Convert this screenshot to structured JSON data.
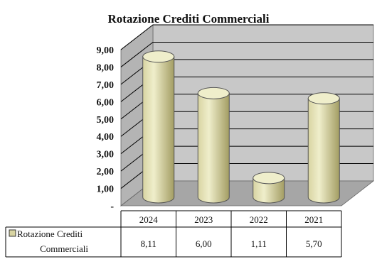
{
  "chart_data": {
    "type": "bar",
    "title": "Rotazione Crediti Commerciali",
    "categories": [
      "2024",
      "2023",
      "2022",
      "2021"
    ],
    "series": [
      {
        "name": "Rotazione Crediti Commerciali",
        "values": [
          8.11,
          6.0,
          1.11,
          5.7
        ],
        "value_labels": [
          "8,11",
          "6,00",
          "1,11",
          "5,70"
        ]
      }
    ],
    "ylim": [
      0,
      9
    ],
    "y_ticks": [
      "-",
      "1,00",
      "2,00",
      "3,00",
      "4,00",
      "5,00",
      "6,00",
      "7,00",
      "8,00",
      "9,00"
    ],
    "legend_lines": [
      "Rotazione Crediti",
      "Commerciali"
    ],
    "grid": true,
    "style": "3d-cylinder",
    "colors": {
      "cylinder_light": "#efeecb",
      "cylinder_mid": "#d8d4a2",
      "cylinder_dark": "#a39d63",
      "wall": "#c8c8c8",
      "floor": "#a6a6a6",
      "grid": "#000000"
    }
  }
}
